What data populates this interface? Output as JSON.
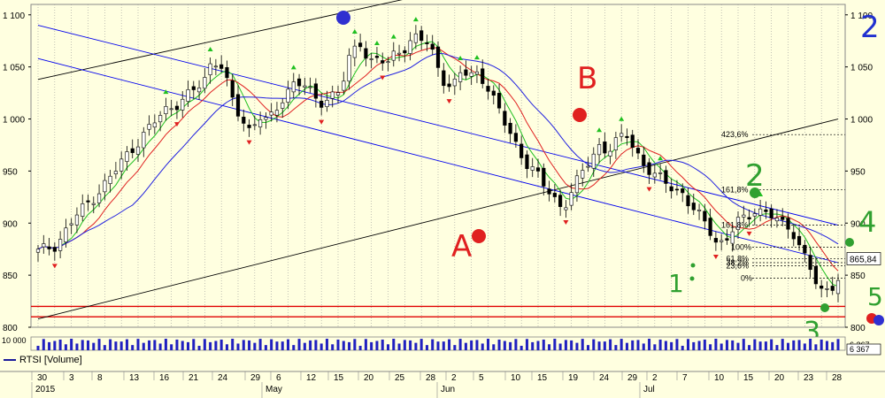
{
  "chart_data": {
    "type": "candlestick",
    "ylim": [
      800,
      1110
    ],
    "y_ticks": [
      800,
      850,
      900,
      950,
      1000,
      1050,
      1100
    ],
    "y_tick_labels": [
      "800",
      "850",
      "900",
      "950",
      "1 000",
      "1 050",
      "1 100"
    ],
    "x_day_ticks": [
      "30",
      "3",
      "8",
      "13",
      "16",
      "21",
      "24",
      "29",
      "6",
      "12",
      "15",
      "20",
      "25",
      "28",
      "2",
      "5",
      "10",
      "15",
      "19",
      "24",
      "29",
      "2",
      "7",
      "10",
      "15",
      "20",
      "23",
      "28"
    ],
    "x_month_labels": [
      "2015",
      "May",
      "Jun",
      "Jul"
    ],
    "sessions": 145,
    "close_path": [
      [
        0,
        872
      ],
      [
        4,
        880
      ],
      [
        8,
        905
      ],
      [
        12,
        925
      ],
      [
        16,
        945
      ],
      [
        20,
        970
      ],
      [
        24,
        990
      ],
      [
        28,
        1010
      ],
      [
        32,
        1020
      ],
      [
        36,
        1035
      ],
      [
        38,
        1060
      ],
      [
        40,
        1050
      ],
      [
        42,
        1020
      ],
      [
        44,
        1000
      ],
      [
        46,
        990
      ],
      [
        48,
        1005
      ],
      [
        50,
        995
      ],
      [
        52,
        1010
      ],
      [
        54,
        1025
      ],
      [
        56,
        1040
      ],
      [
        58,
        1030
      ],
      [
        60,
        1020
      ],
      [
        62,
        1015
      ],
      [
        64,
        1025
      ],
      [
        66,
        1030
      ],
      [
        68,
        1060
      ],
      [
        70,
        1075
      ],
      [
        72,
        1055
      ],
      [
        74,
        1060
      ],
      [
        76,
        1050
      ],
      [
        78,
        1065
      ],
      [
        80,
        1070
      ],
      [
        82,
        1080
      ],
      [
        84,
        1075
      ],
      [
        86,
        1060
      ],
      [
        88,
        1040
      ],
      [
        90,
        1030
      ],
      [
        92,
        1045
      ],
      [
        94,
        1040
      ],
      [
        96,
        1045
      ],
      [
        98,
        1030
      ],
      [
        100,
        1010
      ],
      [
        102,
        990
      ],
      [
        104,
        975
      ],
      [
        106,
        960
      ],
      [
        108,
        950
      ],
      [
        110,
        935
      ],
      [
        112,
        925
      ],
      [
        114,
        915
      ],
      [
        116,
        930
      ],
      [
        118,
        945
      ],
      [
        120,
        960
      ],
      [
        122,
        975
      ],
      [
        124,
        970
      ],
      [
        126,
        978
      ],
      [
        128,
        985
      ],
      [
        130,
        970
      ],
      [
        132,
        955
      ],
      [
        134,
        945
      ],
      [
        136,
        940
      ],
      [
        138,
        935
      ],
      [
        140,
        930
      ],
      [
        142,
        915
      ],
      [
        144,
        905
      ],
      [
        146,
        895
      ],
      [
        148,
        880
      ],
      [
        150,
        885
      ],
      [
        152,
        900
      ],
      [
        154,
        905
      ],
      [
        156,
        915
      ],
      [
        158,
        910
      ],
      [
        160,
        905
      ],
      [
        162,
        898
      ],
      [
        164,
        895
      ],
      [
        166,
        875
      ],
      [
        168,
        855
      ],
      [
        170,
        832
      ],
      [
        172,
        838
      ],
      [
        174,
        848
      ]
    ],
    "volume_ylabel": "10 000",
    "volume_legend": "RTSI [Volume]",
    "last_price": "865,84",
    "last_volume": "6 367",
    "volume_top_value": "6 367",
    "fib_levels": [
      {
        "label": "423,6%",
        "value": 985
      },
      {
        "label": "161,8%",
        "value": 932
      },
      {
        "label": "161,8%",
        "value": 898
      },
      {
        "label": "100%",
        "value": 877
      },
      {
        "label": "61,8%",
        "value": 866
      },
      {
        "label": "38,2%",
        "value": 862
      },
      {
        "label": "23,6%",
        "value": 859
      },
      {
        "label": "0%",
        "value": 847
      }
    ],
    "support_lines": [
      820,
      810
    ],
    "channel_lines": [
      {
        "color": "#000000",
        "from": [
          0,
          1038
        ],
        "to": [
          100,
          1115
        ]
      },
      {
        "color": "#000000",
        "from": [
          0,
          808
        ],
        "to": [
          220,
          1000
        ]
      },
      {
        "color": "#0000ee",
        "from": [
          0,
          1090
        ],
        "to": [
          220,
          898
        ]
      },
      {
        "color": "#0000ee",
        "from": [
          0,
          1058
        ],
        "to": [
          220,
          862
        ]
      }
    ],
    "annotations": [
      {
        "text": "A",
        "color": "#e02020"
      },
      {
        "text": "B",
        "color": "#e02020"
      },
      {
        "text": "1",
        "color": "#30a030"
      },
      {
        "text": "2",
        "color": "#30a030"
      },
      {
        "text": "3",
        "color": "#30a030"
      },
      {
        "text": "4",
        "color": "#30a030"
      },
      {
        "text": "5",
        "color": "#30a030"
      },
      {
        "text": "2",
        "color": "#2030d0"
      }
    ],
    "series": [
      {
        "color": "#20c020"
      },
      {
        "color": "#e02020"
      },
      {
        "color": "#2020e0"
      }
    ]
  }
}
